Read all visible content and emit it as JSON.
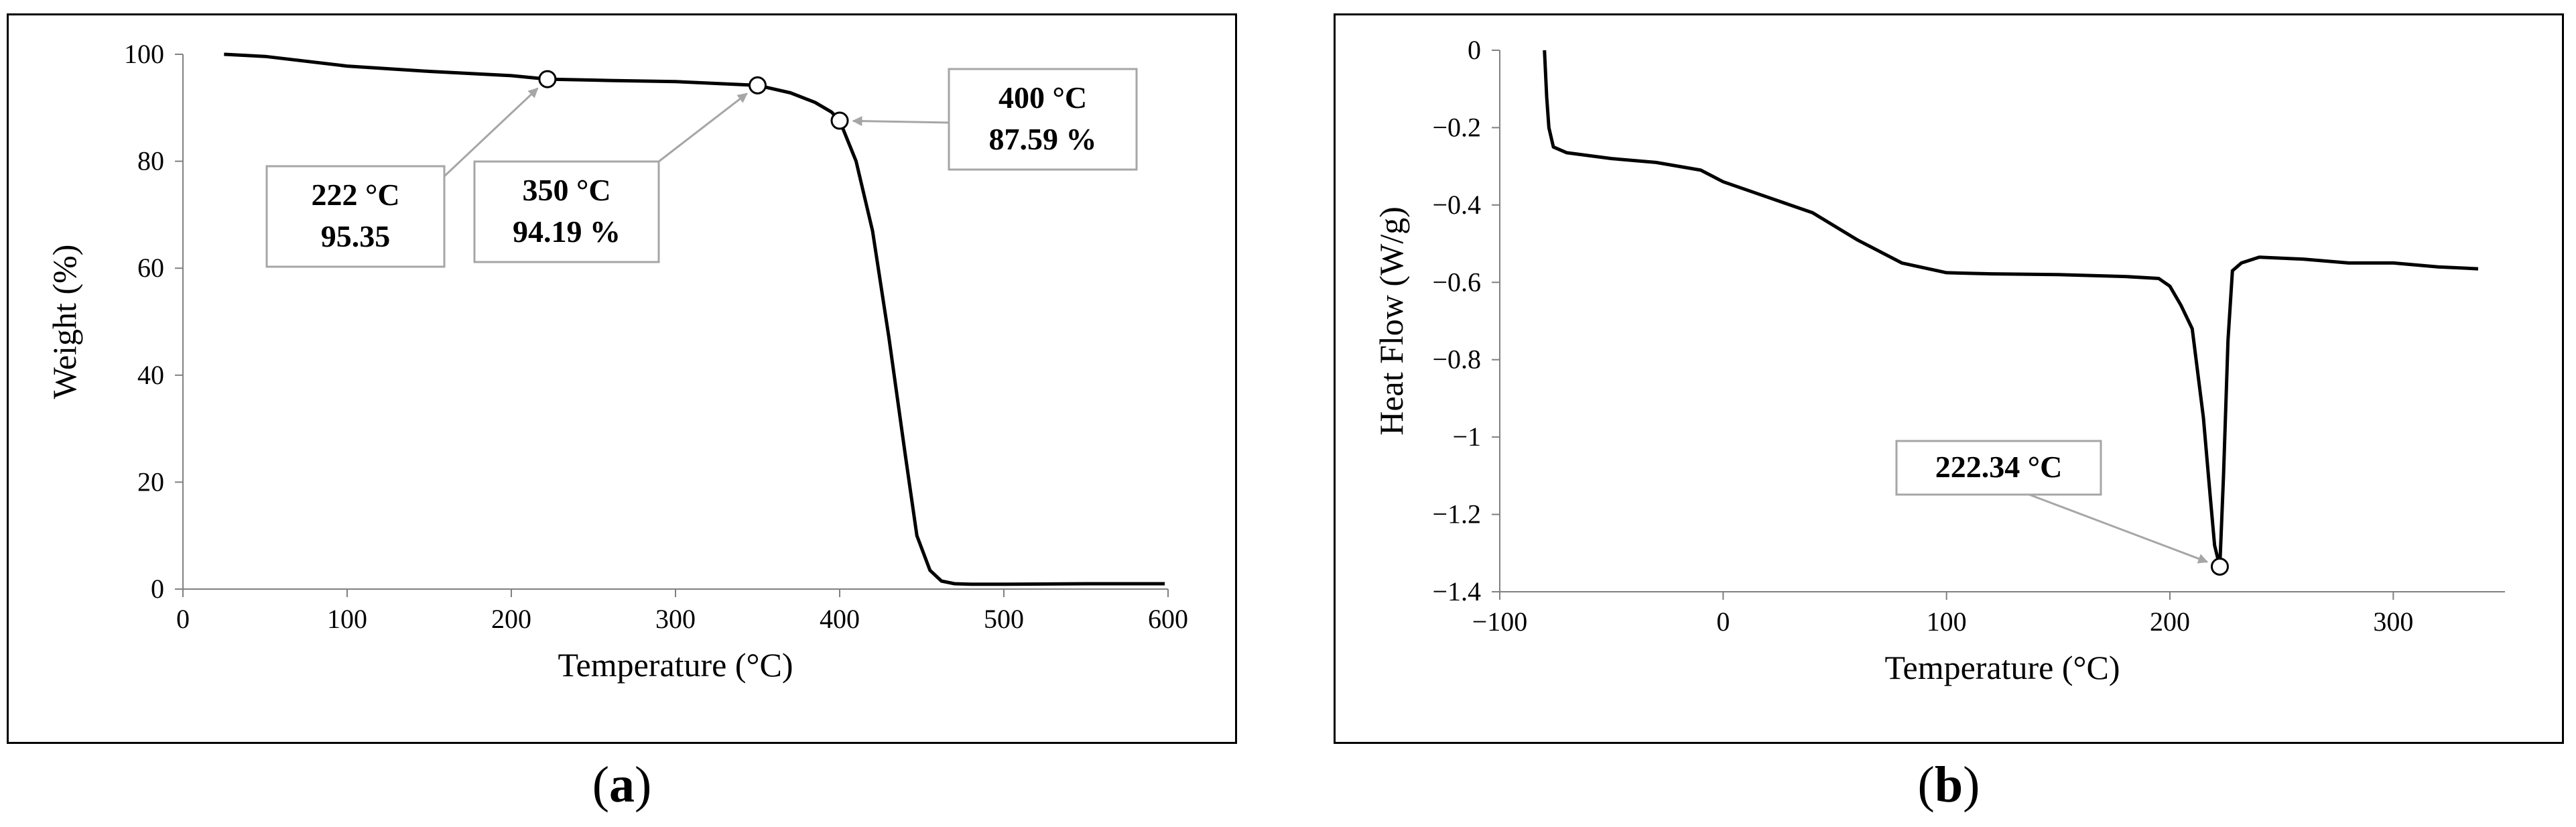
{
  "panels": [
    {
      "id": "a",
      "label": "a",
      "chart_data": {
        "type": "line",
        "title": "",
        "xlabel": "Temperature (°C)",
        "ylabel": "Weight (%)",
        "xlim": [
          0,
          600
        ],
        "ylim": [
          0,
          100
        ],
        "xticks": [
          0,
          100,
          200,
          300,
          400,
          500,
          600
        ],
        "yticks": [
          0,
          20,
          40,
          60,
          80,
          100
        ],
        "grid": false,
        "legend": "none",
        "series": [
          {
            "x": [
              25,
              50,
              100,
              150,
              200,
              222,
              260,
              300,
              350,
              370,
              385,
              395,
              400,
              410,
              420,
              430,
              440,
              447,
              455,
              462,
              470,
              480,
              500,
              550,
              598
            ],
            "y": [
              100,
              99.6,
              97.8,
              96.8,
              96.0,
              95.35,
              95.1,
              94.9,
              94.19,
              92.8,
              91.0,
              89.2,
              87.59,
              80,
              67,
              47,
              25,
              10,
              3.5,
              1.5,
              1.0,
              0.9,
              0.9,
              1.0,
              1.0
            ]
          }
        ],
        "annotations": [
          {
            "line1": "222 °C",
            "line2": "95.35",
            "x": 222,
            "y": 95.35
          },
          {
            "line1": "350 °C",
            "line2": "94.19 %",
            "x": 350,
            "y": 94.19
          },
          {
            "line1": "400 °C",
            "line2": "87.59 %",
            "x": 400,
            "y": 87.59
          }
        ]
      }
    },
    {
      "id": "b",
      "label": "b",
      "chart_data": {
        "type": "line",
        "title": "",
        "xlabel": "Temperature (°C)",
        "ylabel": "Heat Flow (W/g)",
        "xlim": [
          -100,
          350
        ],
        "ylim": [
          -1.4,
          0
        ],
        "xticks": [
          -100,
          0,
          100,
          200,
          300
        ],
        "yticks": [
          0,
          -0.2,
          -0.4,
          -0.6,
          -0.8,
          -1,
          -1.2,
          -1.4
        ],
        "ytick_labels": [
          "0",
          "−0.2",
          "−0.4",
          "−0.6",
          "−0.8",
          "−1",
          "−1.2",
          "−1.4"
        ],
        "xtick_labels": [
          "−100",
          "0",
          "100",
          "200",
          "300"
        ],
        "grid": false,
        "legend": "none",
        "series": [
          {
            "x": [
              -80,
              -79,
              -78,
              -76,
              -70,
              -50,
              -30,
              -10,
              0,
              20,
              40,
              60,
              80,
              100,
              120,
              150,
              180,
              195,
              200,
              205,
              210,
              215,
              218,
              220,
              222.34,
              224,
              226,
              228,
              232,
              240,
              260,
              280,
              300,
              320,
              338
            ],
            "y": [
              0,
              -0.12,
              -0.2,
              -0.25,
              -0.265,
              -0.28,
              -0.29,
              -0.31,
              -0.34,
              -0.38,
              -0.42,
              -0.49,
              -0.55,
              -0.575,
              -0.578,
              -0.58,
              -0.585,
              -0.59,
              -0.61,
              -0.66,
              -0.72,
              -0.95,
              -1.15,
              -1.28,
              -1.335,
              -1.1,
              -0.75,
              -0.57,
              -0.55,
              -0.535,
              -0.54,
              -0.55,
              -0.55,
              -0.56,
              -0.565
            ]
          }
        ],
        "annotations": [
          {
            "line1": "222.34 °C",
            "x": 222.34,
            "y": -1.335
          }
        ]
      }
    }
  ]
}
